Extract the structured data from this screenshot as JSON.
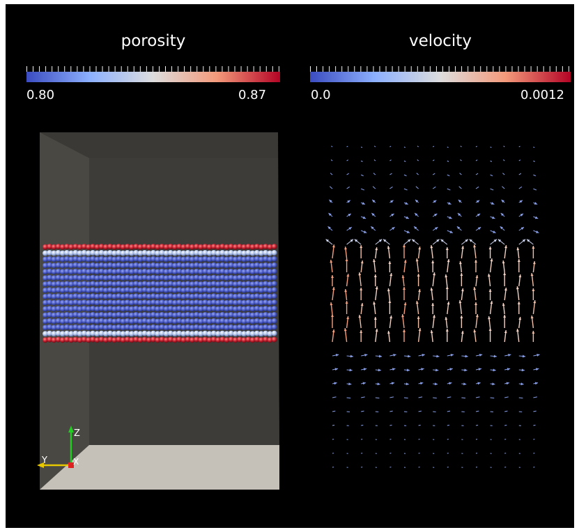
{
  "porosity_legend": {
    "title": "porosity",
    "min_label": "0.80",
    "max_label": "0.87",
    "color_low": "#3b4cc0",
    "color_mid": "#dddddd",
    "color_high": "#b40426"
  },
  "velocity_legend": {
    "title": "velocity",
    "min_label": "0.0",
    "max_label": "0.0012",
    "color_low": "#3b4cc0",
    "color_mid": "#dddddd",
    "color_high": "#b40426"
  },
  "orientation_axes": {
    "z_label": "Z",
    "y_label": "Y",
    "x_label": "X",
    "z_color": "#22cc22",
    "y_color": "#e8c800",
    "x_color": "#dd2222"
  },
  "colors": {
    "background": "#000000",
    "box_wall": "#494843",
    "box_back_wall": "#3d3c38",
    "box_floor": "#c6c1b8"
  }
}
